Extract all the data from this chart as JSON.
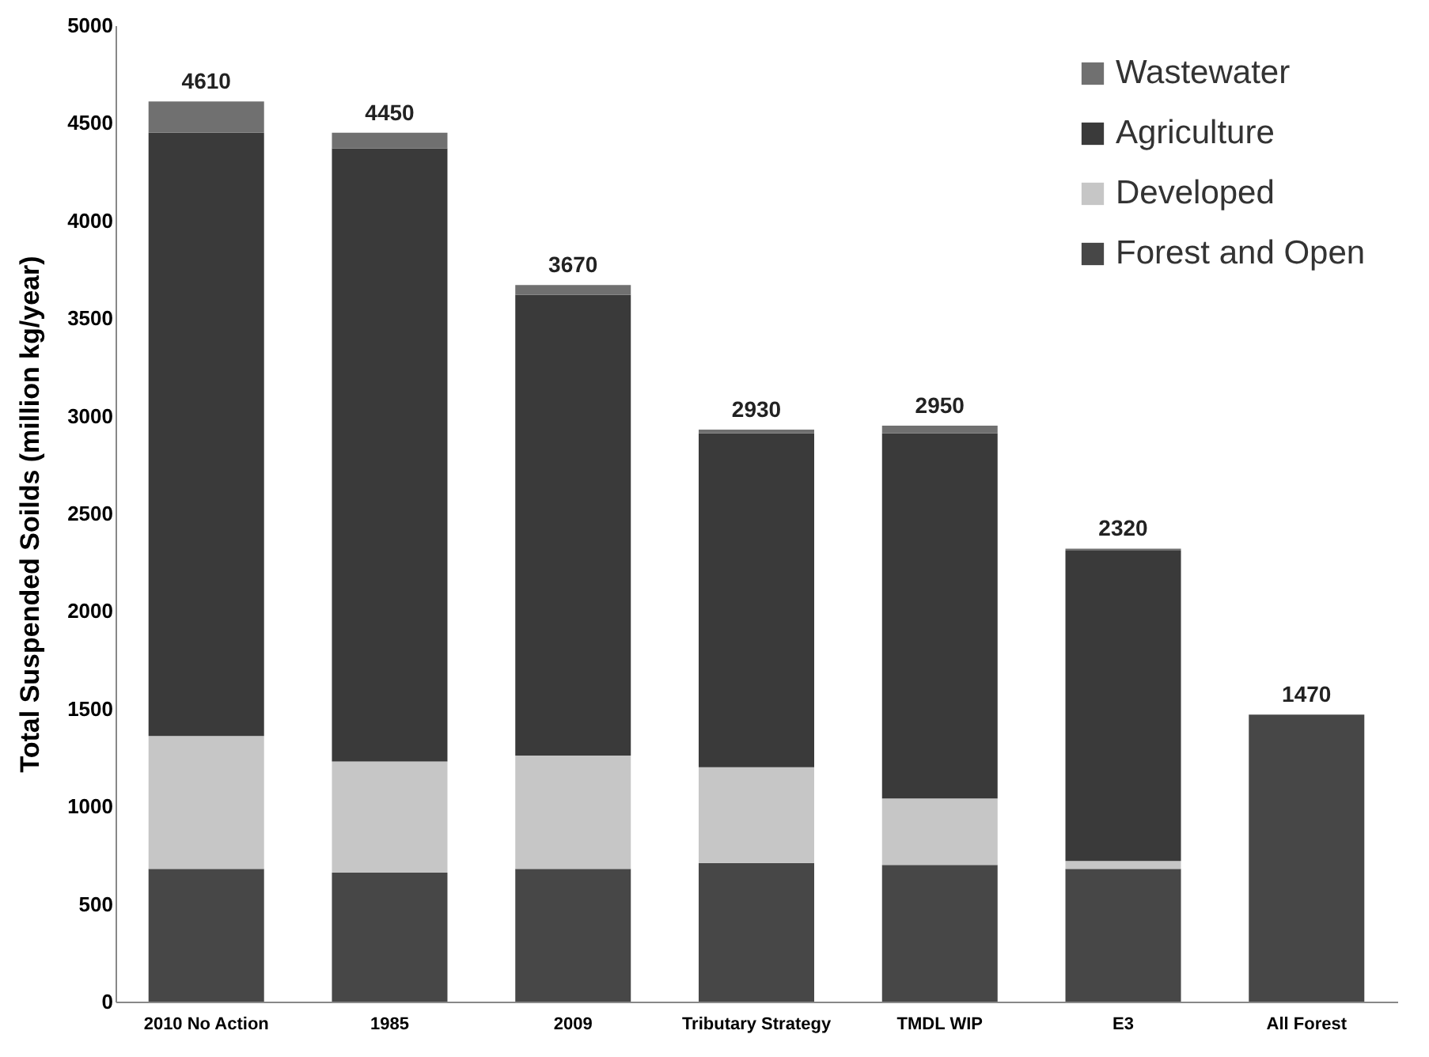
{
  "chart_data": {
    "type": "bar",
    "stacked": true,
    "ylabel": "Total Suspended Soilds (million kg/year)",
    "categories": [
      "2010 No Action",
      "1985",
      "2009",
      "Tributary Strategy",
      "TMDL WIP",
      "E3",
      "All Forest"
    ],
    "series": [
      {
        "name": "Forest and Open",
        "color": "#474747",
        "values": [
          680,
          660,
          680,
          710,
          700,
          680,
          1470
        ]
      },
      {
        "name": "Developed",
        "color": "#c6c6c6",
        "values": [
          680,
          570,
          580,
          490,
          340,
          40,
          0
        ]
      },
      {
        "name": "Agriculture",
        "color": "#3a3a3a",
        "values": [
          3090,
          3140,
          2360,
          1710,
          1870,
          1590,
          0
        ]
      },
      {
        "name": "Wastewater",
        "color": "#707070",
        "values": [
          160,
          80,
          50,
          20,
          40,
          10,
          0
        ]
      }
    ],
    "totals": [
      "4610",
      "4450",
      "3670",
      "2930",
      "2950",
      "2320",
      "1470"
    ],
    "ylim": [
      0,
      5000
    ],
    "yticks": [
      0,
      500,
      1000,
      1500,
      2000,
      2500,
      3000,
      3500,
      4000,
      4500,
      5000
    ],
    "grid": false,
    "legend": "top right"
  }
}
